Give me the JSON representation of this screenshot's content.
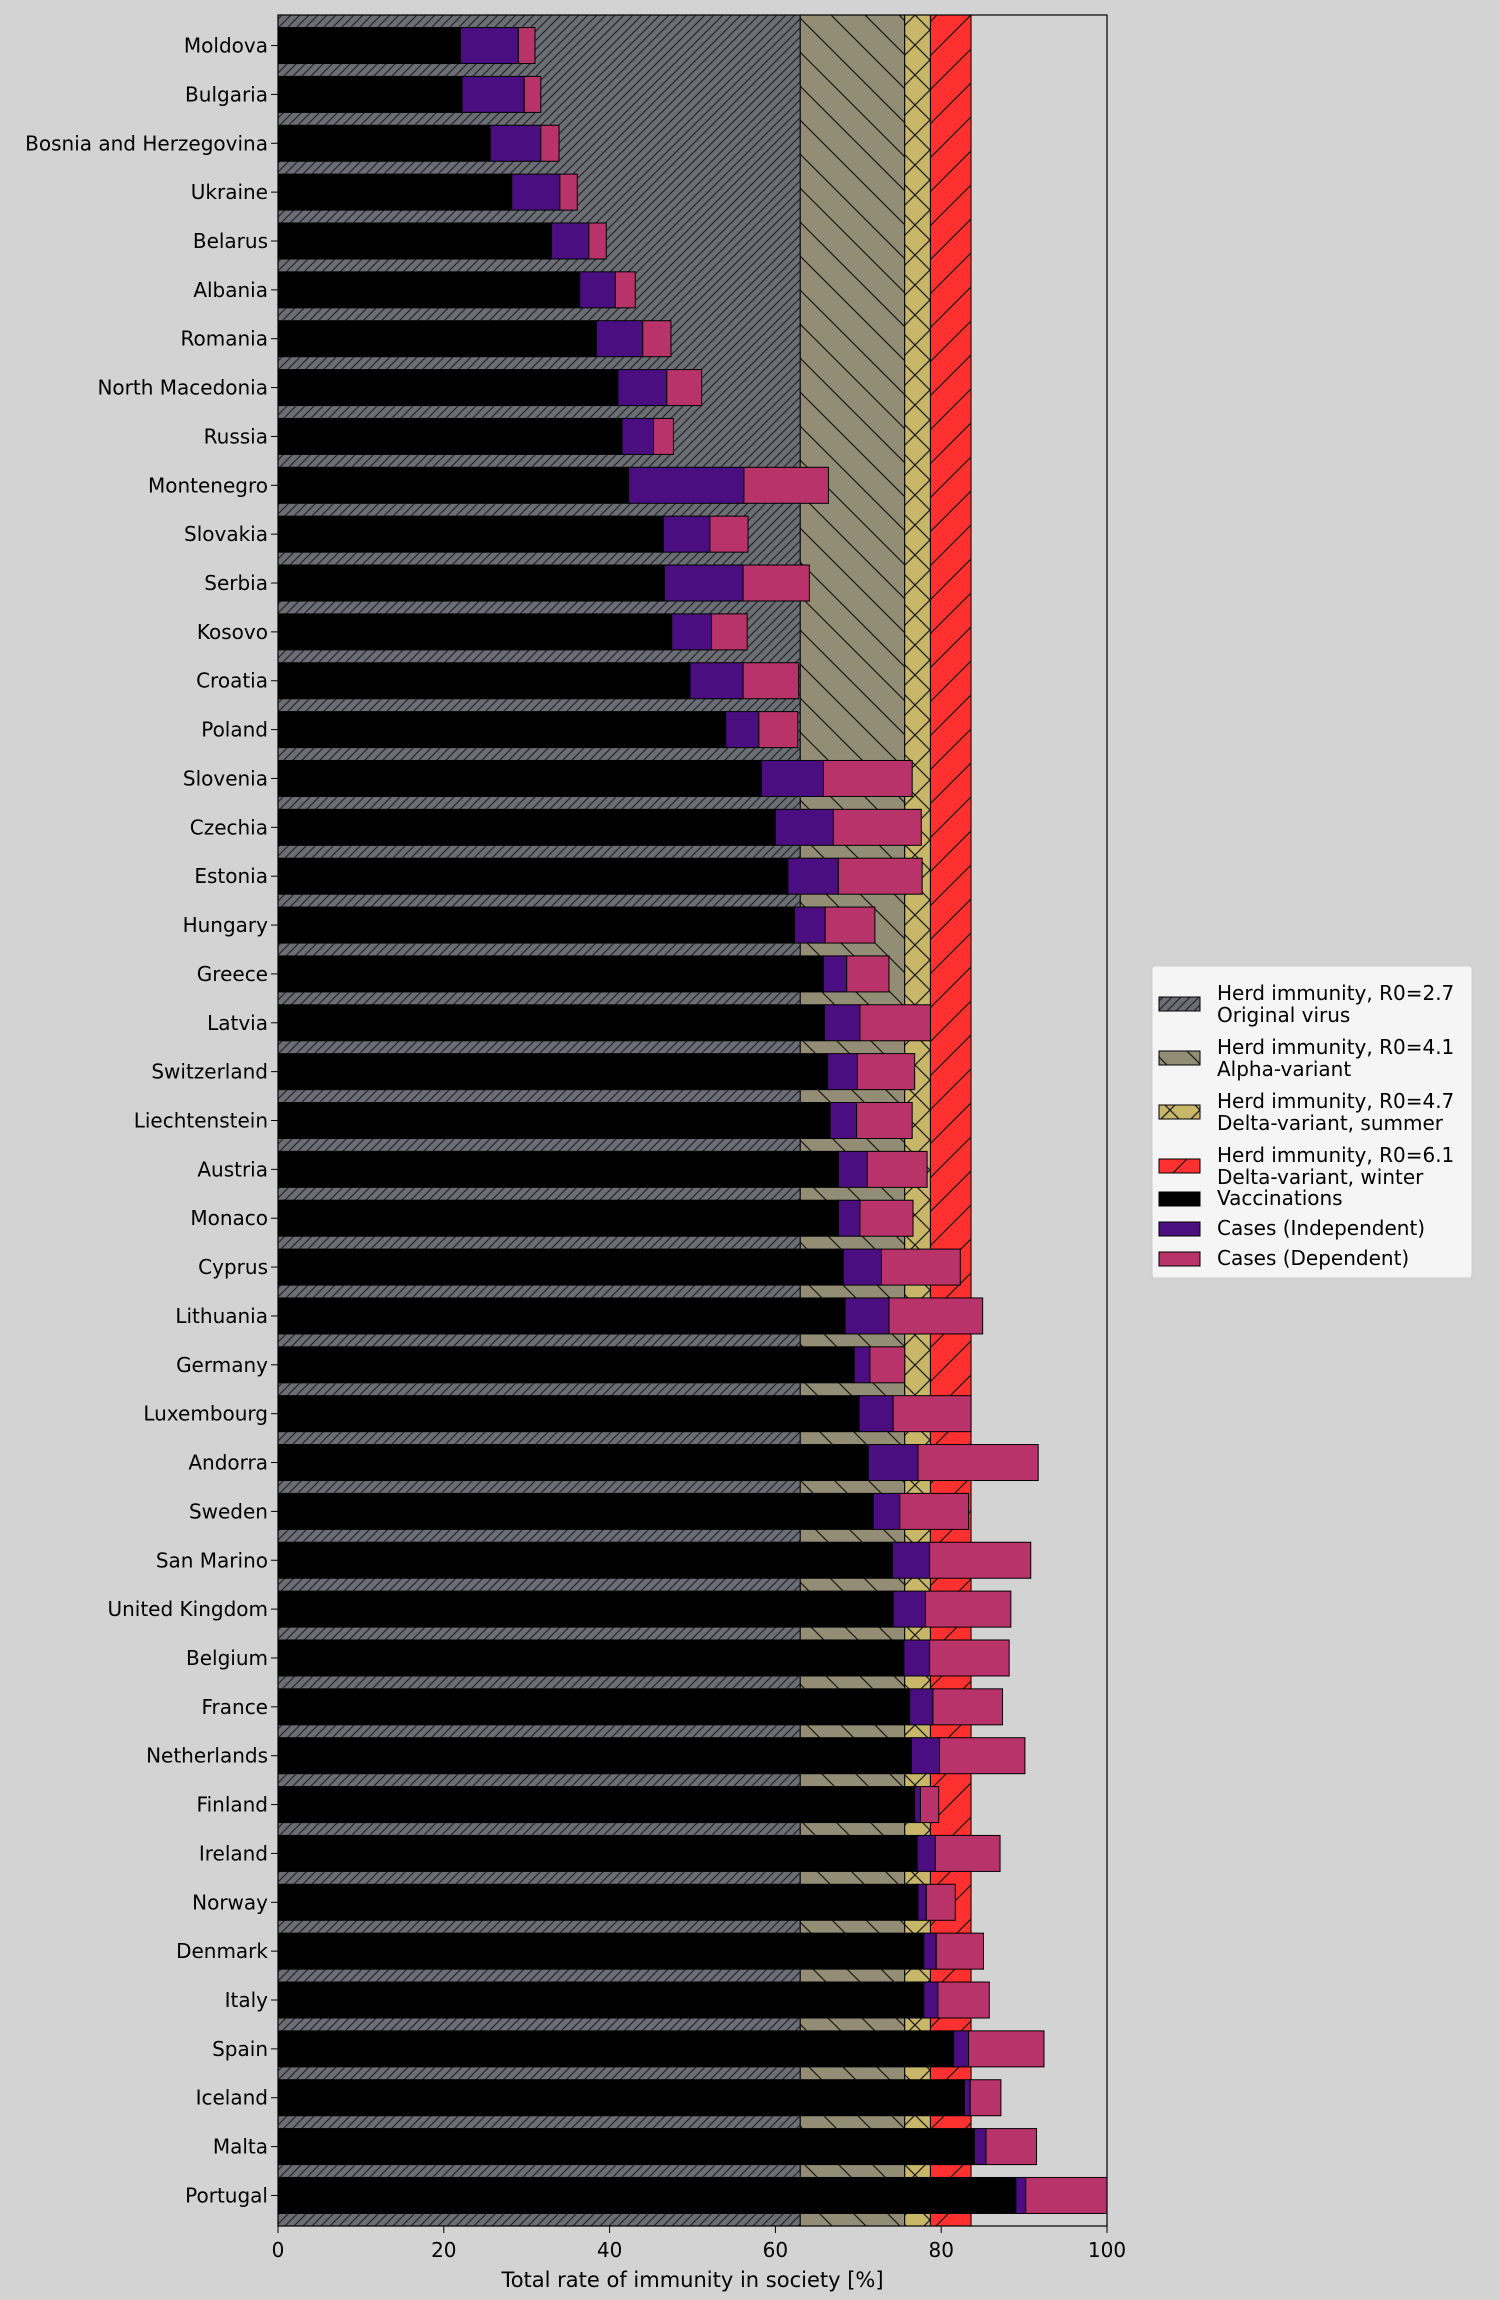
{
  "chart_data": {
    "type": "bar",
    "orientation": "horizontal",
    "stacked": true,
    "xlabel": "Total rate of immunity in society [%]",
    "ylabel": "",
    "xlim": [
      0,
      100
    ],
    "xticks": [
      0,
      20,
      40,
      60,
      80,
      100
    ],
    "grid": false,
    "legend_position": "right",
    "categories": [
      "Moldova",
      "Bulgaria",
      "Bosnia and Herzegovina",
      "Ukraine",
      "Belarus",
      "Albania",
      "Romania",
      "North Macedonia",
      "Russia",
      "Montenegro",
      "Slovakia",
      "Serbia",
      "Kosovo",
      "Croatia",
      "Poland",
      "Slovenia",
      "Czechia",
      "Estonia",
      "Hungary",
      "Greece",
      "Latvia",
      "Switzerland",
      "Liechtenstein",
      "Austria",
      "Monaco",
      "Cyprus",
      "Lithuania",
      "Germany",
      "Luxembourg",
      "Andorra",
      "Sweden",
      "San Marino",
      "United Kingdom",
      "Belgium",
      "France",
      "Netherlands",
      "Finland",
      "Ireland",
      "Norway",
      "Denmark",
      "Italy",
      "Spain",
      "Iceland",
      "Malta",
      "Portugal"
    ],
    "series": [
      {
        "name": "Vaccinations",
        "color": "#000000",
        "values": [
          22.0,
          22.2,
          25.6,
          28.2,
          33.0,
          36.4,
          38.4,
          41.0,
          41.5,
          42.3,
          46.5,
          46.6,
          47.5,
          49.7,
          54.0,
          58.3,
          60.0,
          61.5,
          62.3,
          65.8,
          65.9,
          66.3,
          66.6,
          67.6,
          67.6,
          68.2,
          68.4,
          69.5,
          70.1,
          71.2,
          71.8,
          74.1,
          74.2,
          75.5,
          76.2,
          76.4,
          76.8,
          77.1,
          77.2,
          77.9,
          77.9,
          81.5,
          82.8,
          84.0,
          89.0
        ]
      },
      {
        "name": "Cases (Independent)",
        "color": "#4b0e80",
        "values": [
          7.0,
          7.5,
          6.1,
          5.8,
          4.5,
          4.3,
          5.6,
          5.9,
          3.8,
          13.9,
          5.6,
          9.5,
          4.8,
          6.4,
          4.0,
          7.5,
          7.0,
          6.1,
          3.7,
          2.8,
          4.3,
          3.6,
          3.2,
          3.5,
          2.6,
          4.6,
          5.3,
          1.9,
          4.1,
          6.0,
          3.2,
          4.5,
          3.9,
          3.1,
          2.8,
          3.4,
          0.7,
          2.2,
          1.0,
          1.5,
          1.7,
          1.8,
          0.7,
          1.4,
          1.2
        ]
      },
      {
        "name": "Cases (Dependent)",
        "color": "#b8336a",
        "values": [
          2.0,
          2.0,
          2.2,
          2.1,
          2.1,
          2.4,
          3.4,
          4.2,
          2.4,
          10.2,
          4.6,
          8.0,
          4.3,
          6.7,
          4.7,
          10.7,
          10.6,
          10.1,
          6.0,
          5.1,
          8.5,
          6.9,
          6.7,
          7.2,
          6.4,
          9.5,
          11.3,
          4.2,
          9.4,
          14.5,
          8.3,
          12.2,
          10.3,
          9.6,
          8.4,
          10.3,
          2.2,
          7.8,
          3.5,
          5.7,
          6.2,
          9.1,
          3.7,
          6.1,
          9.8
        ]
      }
    ],
    "bands": [
      {
        "name": "Herd immunity, R0=2.7",
        "subtitle": "Original virus",
        "from": 0,
        "to": 63.0,
        "color": "#6b6e75",
        "hatch": "dense-diagonal"
      },
      {
        "name": "Herd immunity, R0=4.1",
        "subtitle": "Alpha-variant",
        "from": 63.0,
        "to": 75.6,
        "color": "#938d75",
        "hatch": "backslash"
      },
      {
        "name": "Herd immunity, R0=4.7",
        "subtitle": "Delta-variant, summer",
        "from": 75.6,
        "to": 78.7,
        "color": "#c8b669",
        "hatch": "cross"
      },
      {
        "name": "Herd immunity, R0=6.1",
        "subtitle": "Delta-variant, winter",
        "from": 78.7,
        "to": 83.6,
        "color": "#ff3030",
        "hatch": "slash"
      }
    ]
  }
}
